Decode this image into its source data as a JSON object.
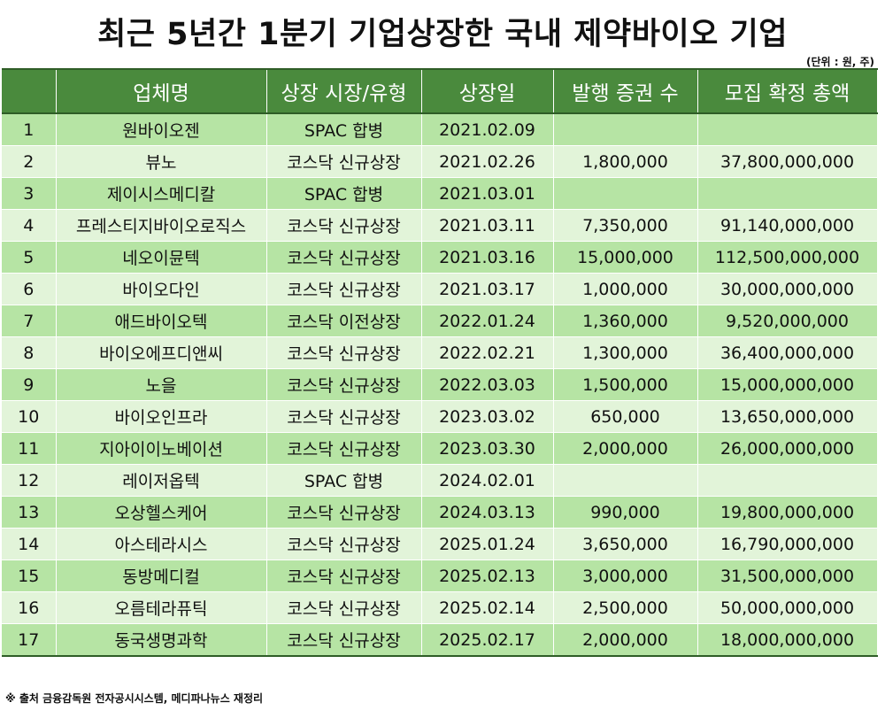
{
  "title": "최근 5년간 1분기 기업상장한 국내 제약바이오 기업",
  "unit_note": "(단위 : 원, 주)",
  "table": {
    "headers": [
      "",
      "업체명",
      "상장 시장/유형",
      "상장일",
      "발행 증권 수",
      "모집 확정 총액"
    ],
    "rows": [
      [
        "1",
        "원바이오젠",
        "SPAC 합병",
        "2021.02.09",
        "",
        ""
      ],
      [
        "2",
        "뷰노",
        "코스닥 신규상장",
        "2021.02.26",
        "1,800,000",
        "37,800,000,000"
      ],
      [
        "3",
        "제이시스메디칼",
        "SPAC 합병",
        "2021.03.01",
        "",
        ""
      ],
      [
        "4",
        "프레스티지바이오로직스",
        "코스닥 신규상장",
        "2021.03.11",
        "7,350,000",
        "91,140,000,000"
      ],
      [
        "5",
        "네오이뮨텍",
        "코스닥 신규상장",
        "2021.03.16",
        "15,000,000",
        "112,500,000,000"
      ],
      [
        "6",
        "바이오다인",
        "코스닥 신규상장",
        "2021.03.17",
        "1,000,000",
        "30,000,000,000"
      ],
      [
        "7",
        "애드바이오텍",
        "코스닥 이전상장",
        "2022.01.24",
        "1,360,000",
        "9,520,000,000"
      ],
      [
        "8",
        "바이오에프디앤씨",
        "코스닥 신규상장",
        "2022.02.21",
        "1,300,000",
        "36,400,000,000"
      ],
      [
        "9",
        "노을",
        "코스닥 신규상장",
        "2022.03.03",
        "1,500,000",
        "15,000,000,000"
      ],
      [
        "10",
        "바이오인프라",
        "코스닥 신규상장",
        "2023.03.02",
        "650,000",
        "13,650,000,000"
      ],
      [
        "11",
        "지아이이노베이션",
        "코스닥 신규상장",
        "2023.03.30",
        "2,000,000",
        "26,000,000,000"
      ],
      [
        "12",
        "레이저옵텍",
        "SPAC 합병",
        "2024.02.01",
        "",
        ""
      ],
      [
        "13",
        "오상헬스케어",
        "코스닥 신규상장",
        "2024.03.13",
        "990,000",
        "19,800,000,000"
      ],
      [
        "14",
        "아스테라시스",
        "코스닥 신규상장",
        "2025.01.24",
        "3,650,000",
        "16,790,000,000"
      ],
      [
        "15",
        "동방메디컬",
        "코스닥 신규상장",
        "2025.02.13",
        "3,000,000",
        "31,500,000,000"
      ],
      [
        "16",
        "오름테라퓨틱",
        "코스닥 신규상장",
        "2025.02.14",
        "2,500,000",
        "50,000,000,000"
      ],
      [
        "17",
        "동국생명과학",
        "코스닥 신규상장",
        "2025.02.17",
        "2,000,000",
        "18,000,000,000"
      ]
    ]
  },
  "source_note": "※ 출처 금융감독원 전자공시시스템, 메디파나뉴스 재정리",
  "colors": {
    "header_bg": "#4a8a3d",
    "row_dark": "#b6e4a4",
    "row_light": "#e2f4d9"
  }
}
